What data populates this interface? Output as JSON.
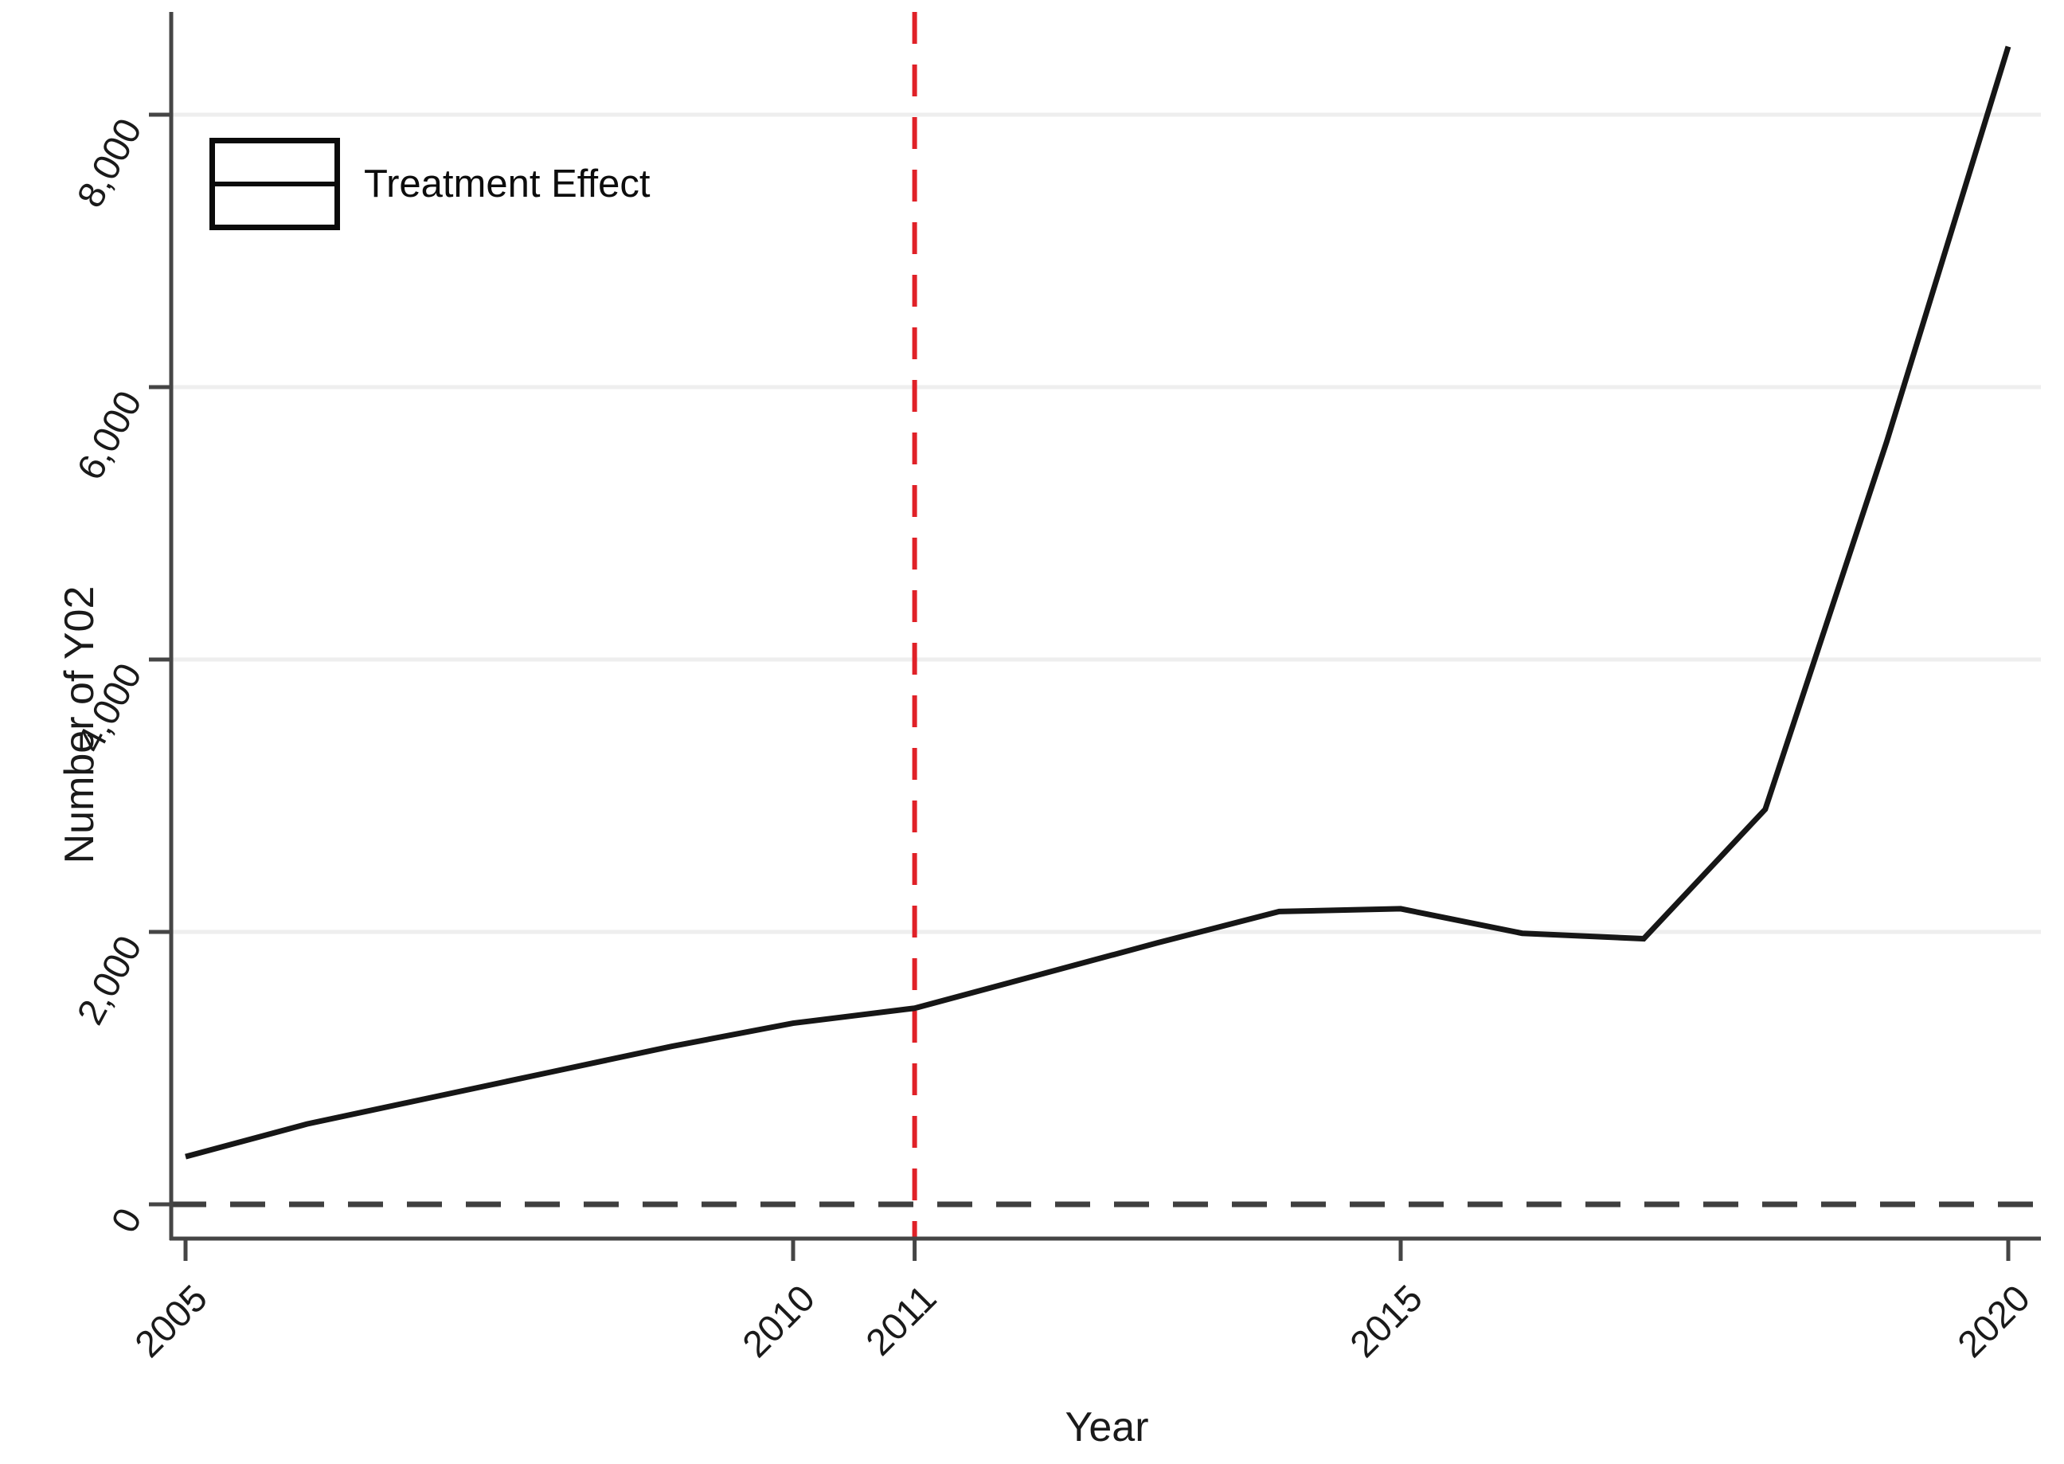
{
  "figure": {
    "background": "#ffffff",
    "legend": {
      "label": "Treatment Effect",
      "position": "top-left"
    },
    "y_axis": {
      "title": "Number of Y02",
      "tick_values": [
        0,
        2000,
        4000,
        6000,
        8000
      ],
      "tick_labels": [
        "0",
        "2,000",
        "4,000",
        "6,000",
        "8,000"
      ],
      "label_angle_deg": -62
    },
    "x_axis": {
      "title": "Year",
      "tick_values": [
        2005,
        2010,
        2011,
        2015,
        2020
      ],
      "tick_labels": [
        "2005",
        "2010",
        "2011",
        "2015",
        "2020"
      ],
      "label_angle_deg": -45
    },
    "colors": {
      "series": "#161616",
      "axis": "#454545",
      "grid": "#eeeeee",
      "treatment_vline": "#e02128",
      "zero_hline": "#3f3f3f",
      "text": "#1a1a1a"
    }
  },
  "chart_data": {
    "type": "line",
    "title": "",
    "xlabel": "Year",
    "ylabel": "Number of Y02",
    "x": [
      2005,
      2006,
      2007,
      2008,
      2009,
      2010,
      2011,
      2012,
      2013,
      2014,
      2015,
      2016,
      2017,
      2018,
      2019,
      2020
    ],
    "series": [
      {
        "name": "Treatment Effect",
        "color": "#161616",
        "values": [
          350,
          590,
          780,
          970,
          1160,
          1330,
          1440,
          1680,
          1920,
          2150,
          2170,
          1990,
          1950,
          2900,
          5600,
          8500
        ]
      }
    ],
    "xlim": [
      2005,
      2020
    ],
    "ylim": [
      0,
      8800
    ],
    "xticks": [
      2005,
      2010,
      2011,
      2015,
      2020
    ],
    "yticks": [
      0,
      2000,
      4000,
      6000,
      8000
    ],
    "grid": "horizontal, very light, at labeled y ticks",
    "legend_position": "top-left inside plot",
    "annotations": {
      "vline": {
        "x": 2011,
        "style": "dashed",
        "color": "#e02128",
        "meaning": "treatment year"
      },
      "hline": {
        "y": 0,
        "style": "dashed",
        "color": "#3f3f3f",
        "meaning": "zero reference"
      }
    }
  }
}
